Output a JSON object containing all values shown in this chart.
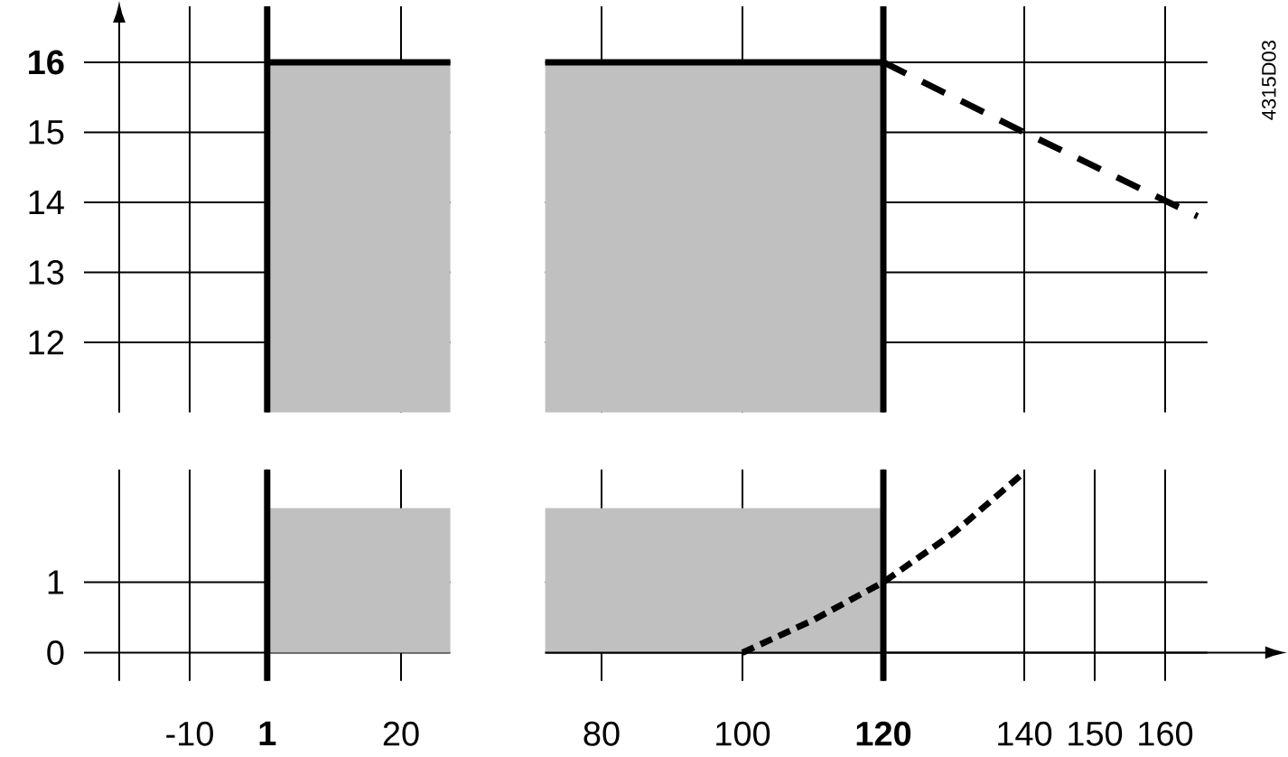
{
  "chart_data": [
    {
      "type": "line",
      "xlim": [
        -25,
        27
      ],
      "ylim": [
        11,
        16.8
      ],
      "xticks": [
        {
          "value": -20,
          "label": null
        },
        -10,
        {
          "value": 1,
          "label": null
        },
        20
      ],
      "yticks": [
        12,
        13,
        14,
        15,
        {
          "value": 16,
          "label": "**16**"
        }
      ],
      "tick_labels": "y",
      "grid": true,
      "series": [
        {
          "type": "area",
          "color": "#c0c0c0",
          "line_style": "solid",
          "x": [
            1,
            27
          ],
          "values": [
            16,
            16
          ]
        }
      ],
      "ref_lines": [
        {
          "axis": "x",
          "value": 1,
          "color": "#000000"
        }
      ]
    },
    {
      "type": "line",
      "xlim": [
        72,
        166
      ],
      "ylim": [
        11,
        16.8
      ],
      "xticks": [
        80,
        100,
        120,
        140,
        160
      ],
      "yticks": [
        12,
        13,
        14,
        15,
        16
      ],
      "tick_labels": false,
      "grid": true,
      "series": [
        {
          "type": "area",
          "color": "#c0c0c0",
          "line_style": "solid",
          "x": [
            72,
            120
          ],
          "values": [
            16,
            16
          ]
        },
        {
          "color": "#000000",
          "line_style": "dashed",
          "x": [
            120,
            140,
            164.6
          ],
          "values": [
            16,
            15,
            13.8
          ]
        }
      ],
      "ref_lines": [
        {
          "axis": "x",
          "value": 120,
          "color": "#000000"
        }
      ],
      "annotations": [
        "4315D03"
      ]
    },
    {
      "type": "line",
      "xlim": [
        -25,
        27
      ],
      "ylim": [
        -0.4,
        2.6
      ],
      "xticks": [
        {
          "value": -20,
          "label": null
        },
        {
          "value": -10,
          "label": "-10"
        },
        {
          "value": 1,
          "label": "**1**"
        },
        20
      ],
      "yticks": [
        0,
        1
      ],
      "grid": true,
      "series": [
        {
          "type": "area",
          "color": "#c0c0c0",
          "x": [
            1,
            27
          ],
          "values": [
            2.05,
            2.05
          ]
        }
      ],
      "ref_lines": [
        {
          "axis": "x",
          "value": 1,
          "color": "#000000"
        }
      ]
    },
    {
      "type": "line",
      "xlim": [
        72,
        166
      ],
      "ylim": [
        -0.4,
        2.6
      ],
      "xticks": [
        80,
        100,
        {
          "value": 120,
          "label": "**120**"
        },
        140,
        {
          "value": 150,
          "label": "150"
        },
        160
      ],
      "yticks": [
        0,
        1
      ],
      "tick_labels": "x",
      "grid": true,
      "series": [
        {
          "type": "area",
          "color": "#c0c0c0",
          "x": [
            72,
            120
          ],
          "values": [
            2.05,
            2.05
          ]
        },
        {
          "color": "#000000",
          "line_style": "dotted",
          "x": [
            100,
            110,
            120,
            130,
            140
          ],
          "values": [
            0,
            0.46,
            1,
            1.7,
            2.56
          ]
        }
      ],
      "ref_lines": [
        {
          "axis": "x",
          "value": 120,
          "color": "#000000"
        }
      ]
    }
  ]
}
